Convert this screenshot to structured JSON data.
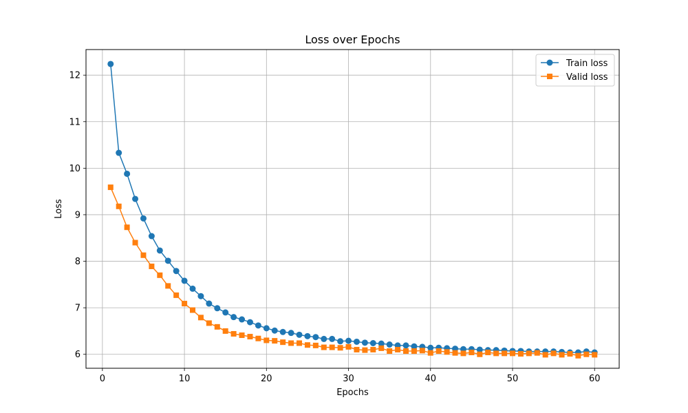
{
  "chart_data": {
    "type": "line",
    "title": "Loss over Epochs",
    "xlabel": "Epochs",
    "ylabel": "Loss",
    "xlim": [
      -2.0,
      63.0
    ],
    "ylim": [
      5.7,
      12.55
    ],
    "xticks": [
      0,
      10,
      20,
      30,
      40,
      50,
      60
    ],
    "yticks": [
      6,
      7,
      8,
      9,
      10,
      11,
      12
    ],
    "grid": true,
    "legend_position": "top-right",
    "x": [
      1,
      2,
      3,
      4,
      5,
      6,
      7,
      8,
      9,
      10,
      11,
      12,
      13,
      14,
      15,
      16,
      17,
      18,
      19,
      20,
      21,
      22,
      23,
      24,
      25,
      26,
      27,
      28,
      29,
      30,
      31,
      32,
      33,
      34,
      35,
      36,
      37,
      38,
      39,
      40,
      41,
      42,
      43,
      44,
      45,
      46,
      47,
      48,
      49,
      50,
      51,
      52,
      53,
      54,
      55,
      56,
      57,
      58,
      59,
      60
    ],
    "series": [
      {
        "name": "Train loss",
        "color": "#1f77b4",
        "marker": "circle",
        "values": [
          12.24,
          10.33,
          9.88,
          9.34,
          8.92,
          8.54,
          8.23,
          8.01,
          7.79,
          7.58,
          7.41,
          7.25,
          7.09,
          6.99,
          6.9,
          6.8,
          6.75,
          6.69,
          6.62,
          6.56,
          6.51,
          6.48,
          6.46,
          6.42,
          6.39,
          6.37,
          6.33,
          6.33,
          6.28,
          6.29,
          6.27,
          6.25,
          6.24,
          6.23,
          6.21,
          6.19,
          6.19,
          6.17,
          6.16,
          6.14,
          6.14,
          6.13,
          6.12,
          6.11,
          6.11,
          6.1,
          6.09,
          6.09,
          6.08,
          6.07,
          6.07,
          6.06,
          6.06,
          6.06,
          6.06,
          6.05,
          6.04,
          6.04,
          6.06,
          6.04
        ]
      },
      {
        "name": "Valid loss",
        "color": "#ff7f0e",
        "marker": "square",
        "values": [
          9.59,
          9.18,
          8.73,
          8.4,
          8.13,
          7.89,
          7.7,
          7.47,
          7.27,
          7.09,
          6.95,
          6.79,
          6.67,
          6.59,
          6.5,
          6.44,
          6.41,
          6.38,
          6.34,
          6.3,
          6.29,
          6.26,
          6.24,
          6.24,
          6.2,
          6.19,
          6.15,
          6.15,
          6.14,
          6.16,
          6.1,
          6.09,
          6.1,
          6.13,
          6.07,
          6.1,
          6.07,
          6.07,
          6.08,
          6.03,
          6.07,
          6.05,
          6.03,
          6.02,
          6.04,
          6.0,
          6.04,
          6.02,
          6.02,
          6.02,
          6.01,
          6.02,
          6.03,
          5.99,
          6.02,
          5.99,
          6.01,
          5.97,
          6.0,
          5.99
        ]
      }
    ]
  }
}
